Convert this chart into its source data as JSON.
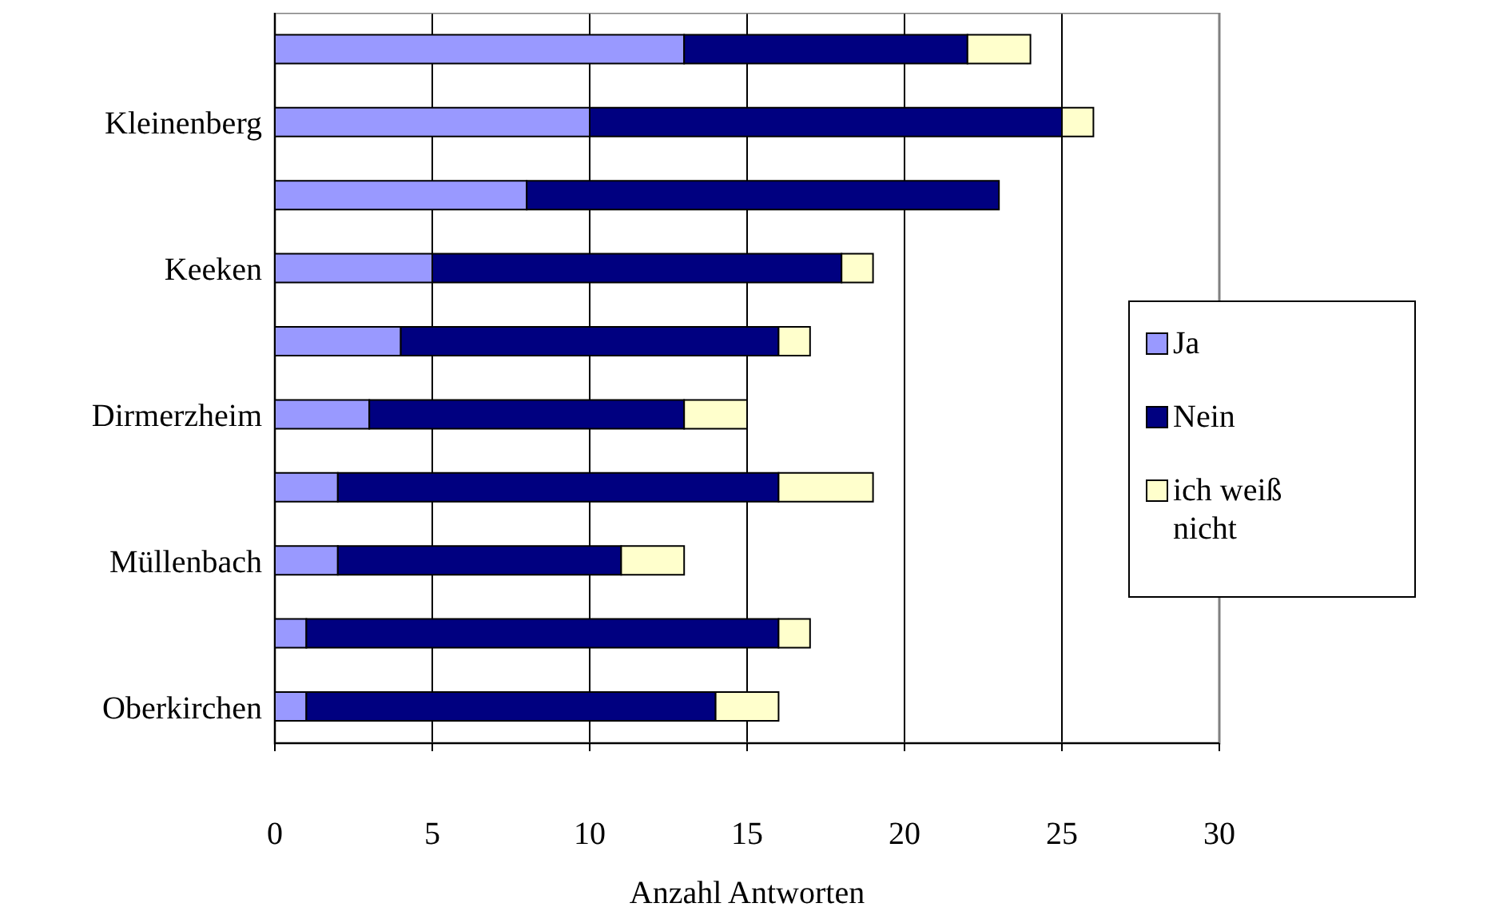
{
  "chart_data": {
    "type": "bar",
    "orientation": "horizontal",
    "stacked": true,
    "xlabel": "Anzahl Antworten",
    "categories": [
      null,
      "Kleinenberg",
      null,
      "Keeken",
      null,
      "Dirmerzheim",
      null,
      "Müllenbach",
      null,
      "Oberkirchen"
    ],
    "series": [
      {
        "name": "Ja",
        "color": "#9999ff",
        "values": [
          13,
          10,
          8,
          5,
          4,
          3,
          2,
          2,
          1,
          1
        ]
      },
      {
        "name": "Nein",
        "color": "#000080",
        "values": [
          9,
          15,
          15,
          13,
          12,
          10,
          14,
          9,
          15,
          13
        ]
      },
      {
        "name": "ich weiß nicht",
        "color": "#ffffcc",
        "values": [
          2,
          1,
          0,
          1,
          1,
          2,
          3,
          2,
          1,
          2
        ]
      }
    ],
    "xlim": [
      0,
      30
    ],
    "xticks": [
      0,
      5,
      10,
      15,
      20,
      25,
      30
    ],
    "grid": "x",
    "legend": "right"
  }
}
